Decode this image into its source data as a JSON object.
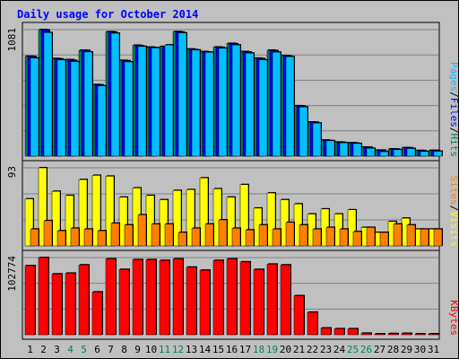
{
  "chart_data": {
    "type": "bar",
    "title": "Daily usage for October 2014",
    "colors": {
      "background": "#c0c0c0",
      "plot": "#c0c0c0",
      "title": "#0000ff",
      "hits": "#00805c",
      "files": "#0000ff",
      "pages": "#00c0ff",
      "visits": "#ffff00",
      "sites": "#ff8000",
      "kbytes": "#ff0000",
      "weekend": "#00805c",
      "weekday": "#000000"
    },
    "categories": [
      "1",
      "2",
      "3",
      "4",
      "5",
      "6",
      "7",
      "8",
      "9",
      "10",
      "11",
      "12",
      "13",
      "14",
      "15",
      "16",
      "17",
      "18",
      "19",
      "20",
      "21",
      "22",
      "23",
      "24",
      "25",
      "26",
      "27",
      "28",
      "29",
      "30",
      "31"
    ],
    "weekend_days": [
      "4",
      "5",
      "11",
      "12",
      "18",
      "19",
      "25",
      "26"
    ],
    "panels": [
      {
        "name": "hits_files_pages",
        "max_label": "1081",
        "ymax": 1081,
        "legend": [
          {
            "text": "Pages",
            "color": "#00c0ff"
          },
          {
            "text": "/",
            "color": "#000000"
          },
          {
            "text": "Files",
            "color": "#0000ff"
          },
          {
            "text": "/",
            "color": "#000000"
          },
          {
            "text": "Hits",
            "color": "#00805c"
          }
        ],
        "series": [
          {
            "name": "Hits",
            "color": "#00805c",
            "values": [
              853,
              1081,
              834,
              824,
              904,
              611,
              1063,
              818,
              947,
              931,
              937,
              1064,
              915,
              893,
              932,
              963,
              893,
              837,
              905,
              859,
              430,
              291,
              137,
              120,
              114,
              77,
              51,
              61,
              72,
              48,
              49
            ]
          },
          {
            "name": "Files",
            "color": "#0000ff",
            "values": [
              850,
              1078,
              830,
              818,
              903,
              609,
              1060,
              815,
              943,
              927,
              933,
              1060,
              910,
              889,
              929,
              960,
              889,
              834,
              901,
              855,
              428,
              290,
              134,
              118,
              111,
              76,
              50,
              60,
              71,
              47,
              48
            ]
          },
          {
            "name": "Pages",
            "color": "#00c0ff",
            "values": [
              838,
              1055,
              822,
              808,
              890,
              600,
              1050,
              805,
              937,
              925,
              950,
              1053,
              907,
              887,
              922,
              950,
              880,
              822,
              888,
              850,
              420,
              282,
              132,
              114,
              108,
              67,
              38,
              55,
              65,
              40,
              42
            ]
          }
        ]
      },
      {
        "name": "visits_sites",
        "max_label": "93",
        "ymax": 93,
        "legend": [
          {
            "text": "Sites",
            "color": "#ff8000"
          },
          {
            "text": "/",
            "color": "#000000"
          },
          {
            "text": "Visits",
            "color": "#ffff00"
          }
        ],
        "series": [
          {
            "name": "Visits",
            "color": "#ffff00",
            "values": [
              56,
              93,
              65,
              60,
              79,
              84,
              83,
              58,
              69,
              60,
              55,
              66,
              67,
              81,
              68,
              58,
              73,
              45,
              63,
              55,
              50,
              38,
              44,
              38,
              43,
              22,
              16,
              29,
              33,
              20,
              20
            ]
          },
          {
            "name": "Sites",
            "color": "#ff8000",
            "values": [
              20,
              30,
              18,
              21,
              20,
              18,
              27,
              25,
              37,
              26,
              26,
              16,
              21,
              26,
              31,
              21,
              19,
              25,
              20,
              28,
              25,
              20,
              22,
              20,
              17,
              22,
              16,
              26,
              25,
              20,
              20
            ]
          }
        ]
      },
      {
        "name": "kbytes",
        "max_label": "102774",
        "ymax": 102774,
        "legend": [
          {
            "text": "KBytes",
            "color": "#ff0000"
          }
        ],
        "series": [
          {
            "name": "KBytes",
            "color": "#ff0000",
            "values": [
              92000,
              102774,
              81000,
              82000,
              93000,
              57000,
              101000,
              87000,
              100000,
              100000,
              99000,
              101000,
              90000,
              86000,
              99000,
              101000,
              97000,
              87000,
              94000,
              93000,
              52000,
              30000,
              9000,
              8000,
              8000,
              2000,
              1200,
              1500,
              1800,
              1200,
              1200
            ]
          }
        ]
      }
    ]
  }
}
